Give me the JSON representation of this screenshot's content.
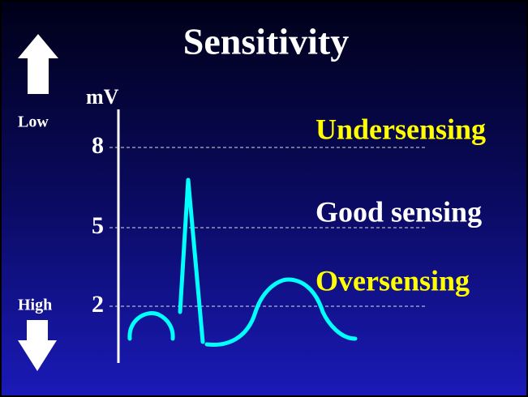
{
  "title": "Sensitivity",
  "scale": {
    "top_label": "Low",
    "bottom_label": "High"
  },
  "axis": {
    "unit": "mV",
    "ticks": [
      "8",
      "5",
      "2"
    ]
  },
  "zones": [
    {
      "label": "Undersensing",
      "color": "#ffff00"
    },
    {
      "label": "Good sensing",
      "color": "#ffffff"
    },
    {
      "label": "Oversensing",
      "color": "#ffff00"
    }
  ]
}
